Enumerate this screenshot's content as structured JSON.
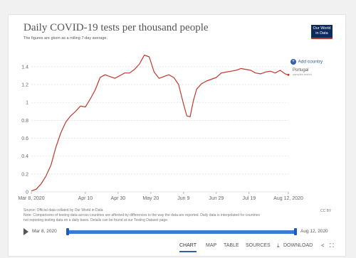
{
  "header": {
    "title": "Daily COVID-19 tests per thousand people",
    "subtitle": "The figures are given as a rolling 7-day average."
  },
  "logo": {
    "line1": "Our World",
    "line2": "in Data"
  },
  "add_country": "Add country",
  "series_label": {
    "name": "Portugal",
    "note": "samples tested"
  },
  "colors": {
    "line": "#c0392b",
    "accent": "#3360a9",
    "grid": "#dddddd",
    "timeline": "#3a7bd5"
  },
  "footer": {
    "source": "Source: Official data collated by Our World in Data",
    "note_line1": "Note: Comparisons of testing data across countries are affected by differences in the way the data are reported. Daily data is interpolated for countries",
    "note_line2": "not reporting testing data on a daily basis. Details can be found at our Testing Dataset page.",
    "license": "CC BY"
  },
  "timeline": {
    "start": "Mar 8, 2020",
    "end": "Aug 12, 2020"
  },
  "tabs": [
    "CHART",
    "MAP",
    "TABLE",
    "SOURCES",
    "DOWNLOAD"
  ],
  "active_tab": "CHART",
  "chart_data": {
    "type": "line",
    "title": "Daily COVID-19 tests per thousand people",
    "subtitle": "The figures are given as a rolling 7-day average.",
    "xlabel": "",
    "ylabel": "",
    "x_tick_labels": [
      "Mar 8, 2020",
      "Apr 10",
      "Apr 30",
      "May 20",
      "Jun 9",
      "Jun 29",
      "Jul 19",
      "Aug 12, 2020"
    ],
    "x_tick_dates": [
      "2020-03-08",
      "2020-04-10",
      "2020-04-30",
      "2020-05-20",
      "2020-06-09",
      "2020-06-29",
      "2020-07-19",
      "2020-08-12"
    ],
    "y_ticks": [
      0,
      0.2,
      0.4,
      0.6,
      0.8,
      1,
      1.2,
      1.4
    ],
    "ylim": [
      0,
      1.55
    ],
    "grid": "horizontal dashed",
    "series": [
      {
        "name": "Portugal",
        "x": [
          "2020-03-08",
          "2020-03-11",
          "2020-03-14",
          "2020-03-17",
          "2020-03-20",
          "2020-03-23",
          "2020-03-26",
          "2020-03-29",
          "2020-04-01",
          "2020-04-04",
          "2020-04-07",
          "2020-04-10",
          "2020-04-13",
          "2020-04-16",
          "2020-04-19",
          "2020-04-22",
          "2020-04-25",
          "2020-04-28",
          "2020-05-01",
          "2020-05-04",
          "2020-05-07",
          "2020-05-10",
          "2020-05-13",
          "2020-05-16",
          "2020-05-19",
          "2020-05-22",
          "2020-05-25",
          "2020-05-28",
          "2020-05-31",
          "2020-06-03",
          "2020-06-06",
          "2020-06-09",
          "2020-06-11",
          "2020-06-13",
          "2020-06-15",
          "2020-06-17",
          "2020-06-20",
          "2020-06-23",
          "2020-06-26",
          "2020-06-29",
          "2020-07-02",
          "2020-07-05",
          "2020-07-08",
          "2020-07-11",
          "2020-07-14",
          "2020-07-17",
          "2020-07-20",
          "2020-07-23",
          "2020-07-26",
          "2020-07-29",
          "2020-08-01",
          "2020-08-04",
          "2020-08-07",
          "2020-08-10",
          "2020-08-12"
        ],
        "y": [
          0.01,
          0.03,
          0.09,
          0.18,
          0.3,
          0.5,
          0.66,
          0.78,
          0.85,
          0.9,
          0.96,
          0.95,
          1.04,
          1.14,
          1.28,
          1.31,
          1.29,
          1.27,
          1.3,
          1.33,
          1.33,
          1.37,
          1.43,
          1.53,
          1.51,
          1.34,
          1.27,
          1.29,
          1.31,
          1.28,
          1.2,
          0.98,
          0.85,
          0.84,
          1.02,
          1.15,
          1.21,
          1.24,
          1.26,
          1.28,
          1.33,
          1.34,
          1.35,
          1.36,
          1.38,
          1.37,
          1.36,
          1.33,
          1.32,
          1.34,
          1.35,
          1.33,
          1.36,
          1.32,
          1.31
        ]
      }
    ]
  }
}
